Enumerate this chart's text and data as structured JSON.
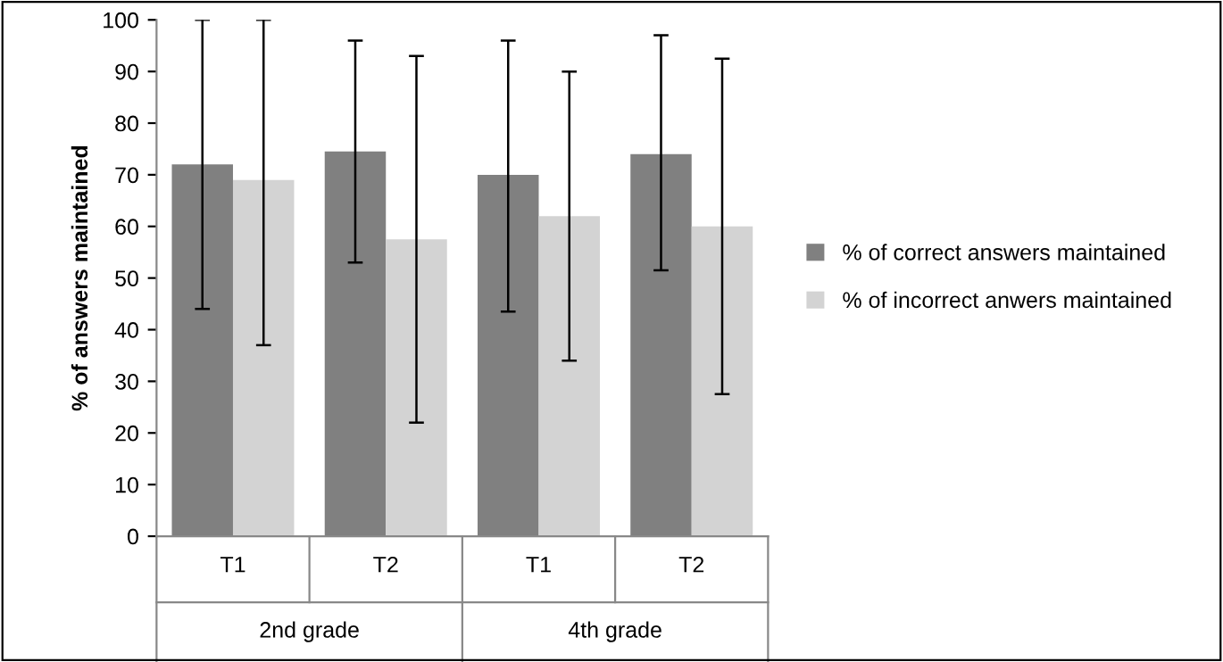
{
  "chart_data": {
    "type": "bar",
    "ylabel": "% of answers maintained",
    "categories": [
      "T1",
      "T2",
      "T1",
      "T2"
    ],
    "annotations": [
      "2nd grade",
      "4th grade"
    ],
    "series": [
      {
        "name": "% of correct answers maintained",
        "color": "#808080",
        "values": [
          72,
          74.5,
          70,
          74
        ],
        "errors": [
          [
            44,
            100
          ],
          [
            53,
            96
          ],
          [
            43.5,
            96
          ],
          [
            51.5,
            97
          ]
        ]
      },
      {
        "name": "% of incorrect anwers maintained",
        "color": "#d3d3d3",
        "values": [
          69,
          57.5,
          62,
          60
        ],
        "errors": [
          [
            37,
            100
          ],
          [
            22,
            93
          ],
          [
            34,
            90
          ],
          [
            27.5,
            92.5
          ]
        ]
      }
    ],
    "ylim": [
      0,
      100
    ],
    "yticks": [
      0,
      10,
      20,
      30,
      40,
      50,
      60,
      70,
      80,
      90,
      100
    ],
    "grid": false,
    "legend": "right"
  }
}
